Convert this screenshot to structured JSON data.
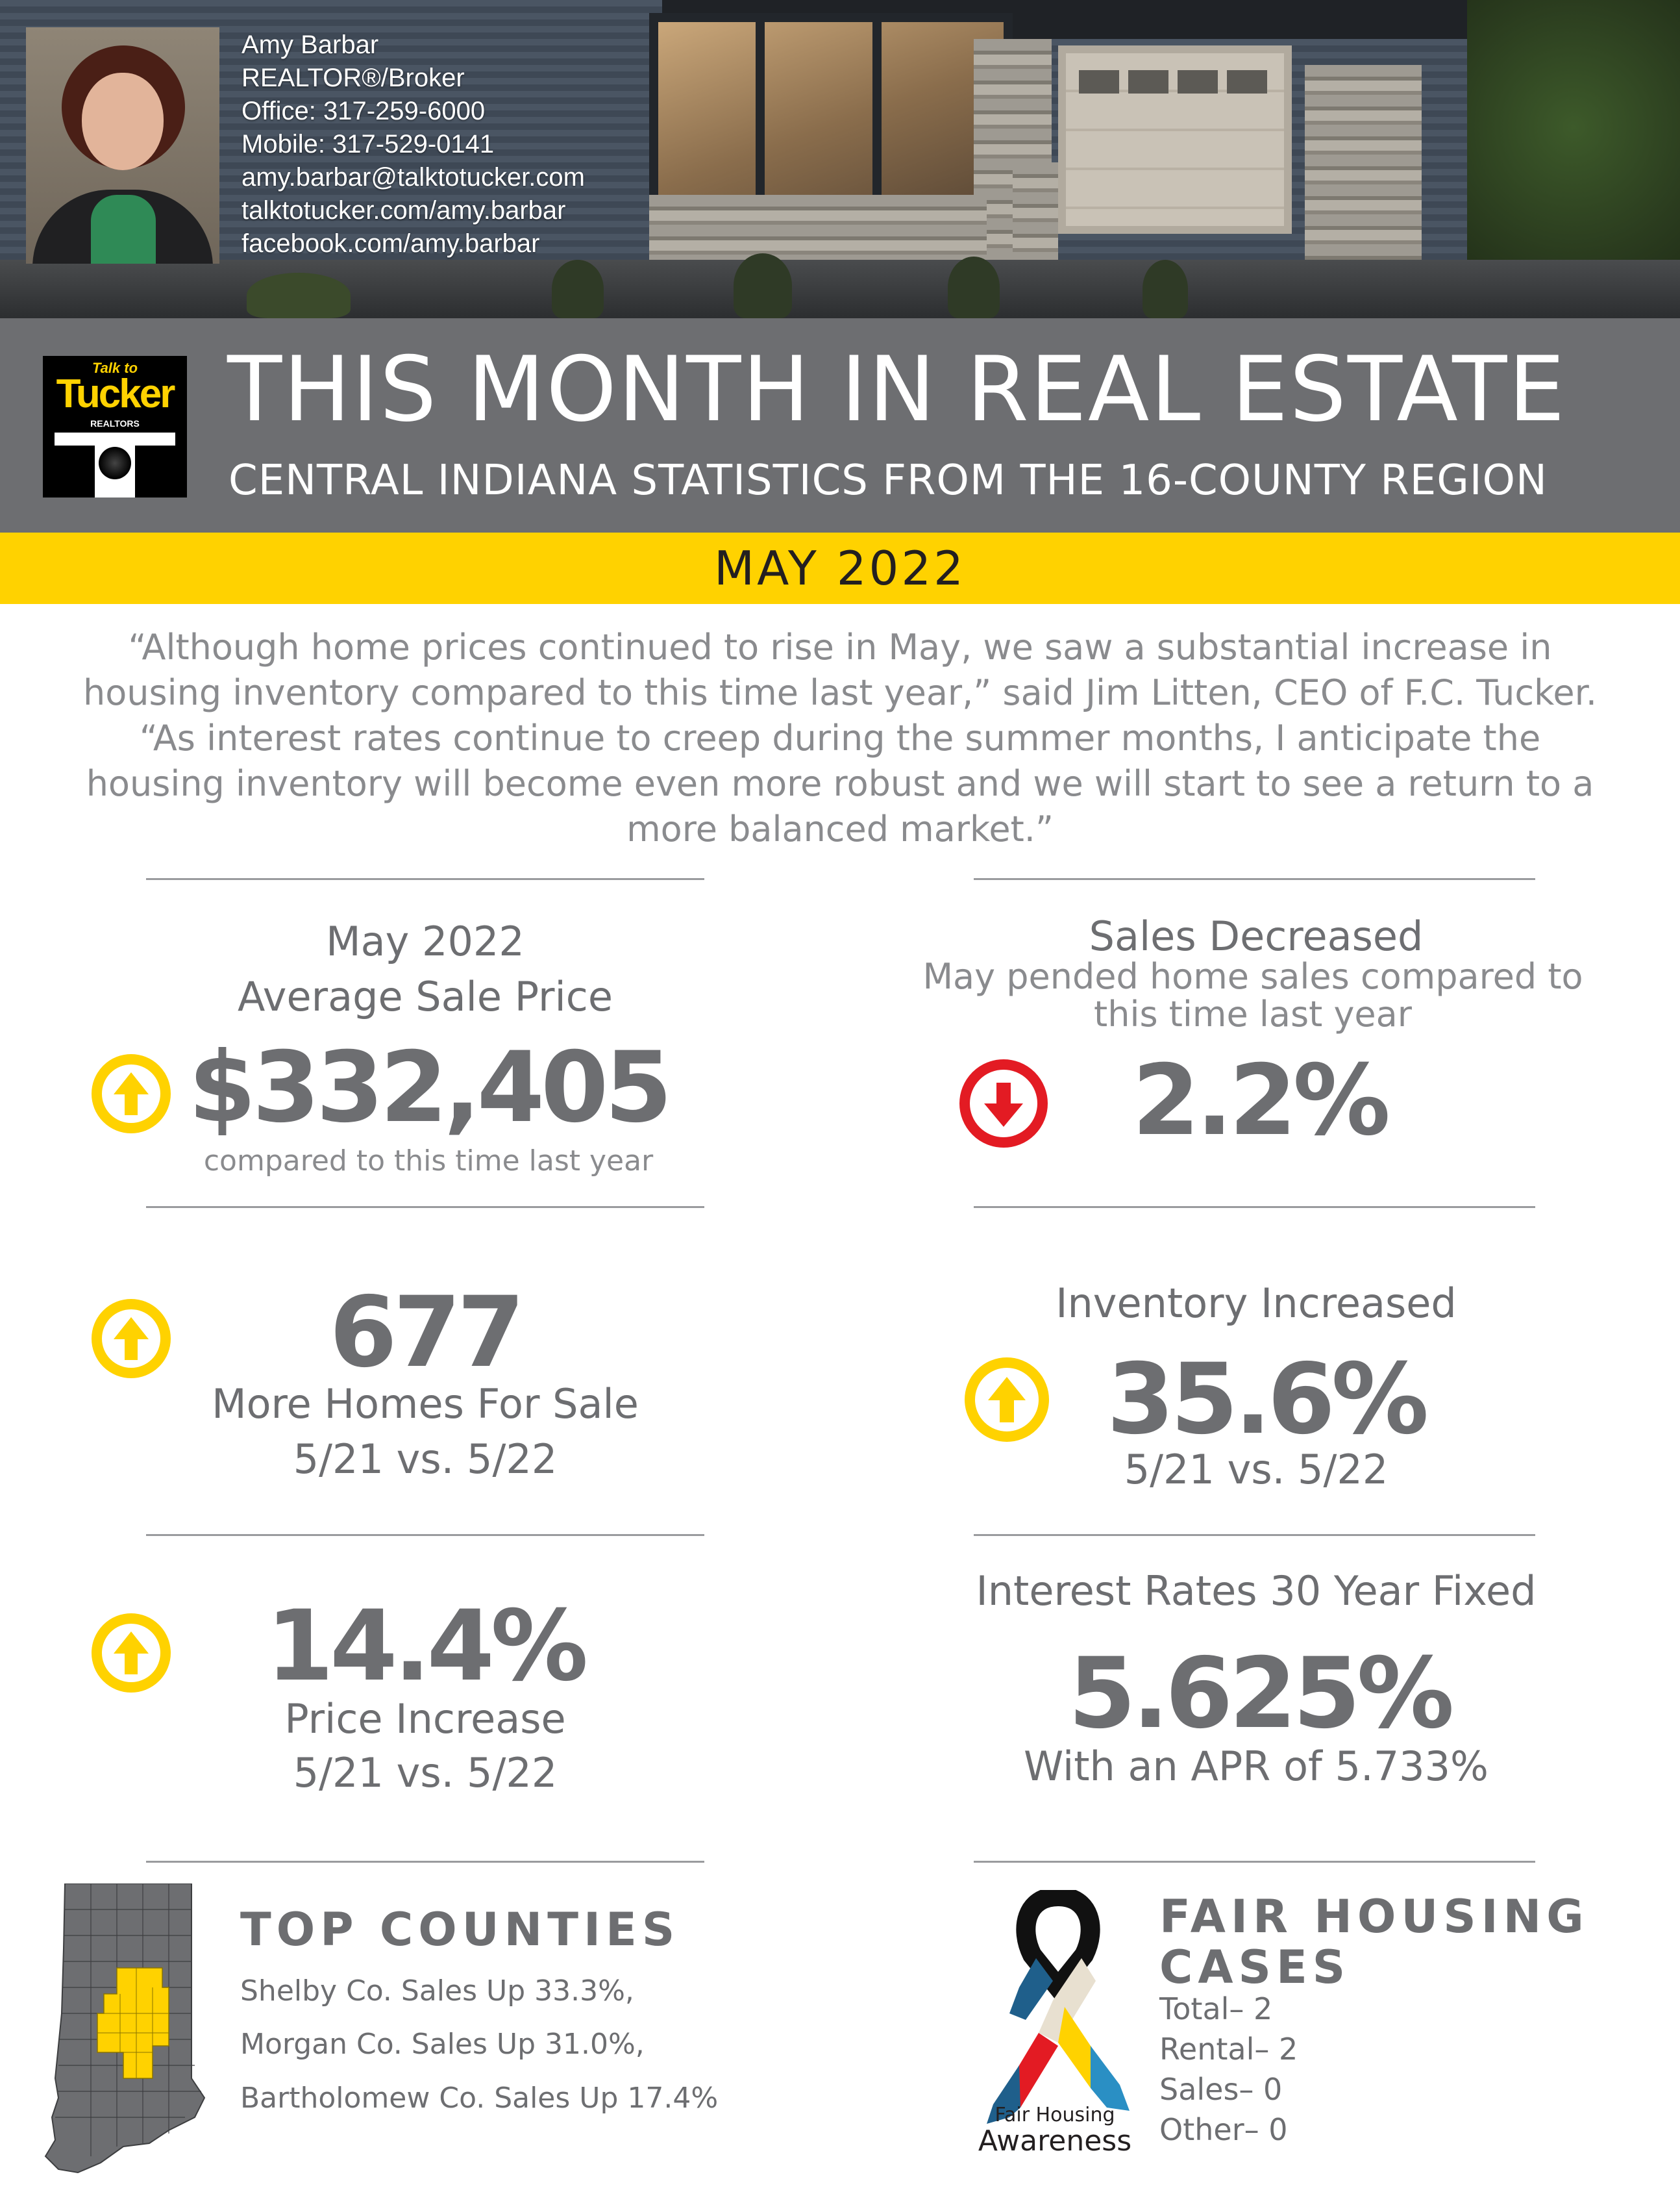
{
  "agent": {
    "name": "Amy Barbar",
    "title": "REALTOR®/Broker",
    "office": "Office: 317-259-6000",
    "mobile": "Mobile: 317-529-0141",
    "email": "amy.barbar@talktotucker.com",
    "website": "talktotucker.com/amy.barbar",
    "facebook": "facebook.com/amy.barbar"
  },
  "logo": {
    "top": "Talk to",
    "main": "Tucker",
    "bottom": "REALTORS"
  },
  "header": {
    "title": "THIS MONTH IN REAL ESTATE",
    "subtitle": "CENTRAL INDIANA STATISTICS FROM THE 16-COUNTY REGION",
    "month": "MAY 2022"
  },
  "quote": "“Although home prices continued to rise in May, we saw a substantial increase in housing inventory compared to this time last year,” said Jim Litten, CEO of F.C. Tucker. “As interest rates continue to creep during the summer months, I anticipate the housing inventory will become even more robust and we will start to see a return to a more balanced market.”",
  "stats": {
    "avg_price": {
      "label1": "May 2022",
      "label2": "Average Sale Price",
      "value": "$332,405",
      "note": "compared to this time last year",
      "direction": "up"
    },
    "sales": {
      "label": "Sales Decreased",
      "sub1": "May pended home sales compared to",
      "sub2": "this time last year",
      "value": "2.2%",
      "direction": "down"
    },
    "homes": {
      "value": "677",
      "label": "More Homes For Sale",
      "compare": "5/21 vs. 5/22",
      "direction": "up"
    },
    "inventory": {
      "label": "Inventory Increased",
      "value": "35.6%",
      "compare": "5/21 vs. 5/22",
      "direction": "up"
    },
    "price_increase": {
      "value": "14.4%",
      "label": "Price Increase",
      "compare": "5/21 vs. 5/22",
      "direction": "up"
    },
    "rates": {
      "label": "Interest Rates 30 Year Fixed",
      "value": "5.625%",
      "apr": "With an APR of 5.733%"
    }
  },
  "counties": {
    "title": "TOP COUNTIES",
    "items": [
      "Shelby Co. Sales Up 33.3%,",
      "Morgan Co. Sales Up 31.0%,",
      "Bartholomew Co. Sales Up 17.4%"
    ]
  },
  "fair_housing": {
    "title1": "FAIR HOUSING",
    "title2": "CASES",
    "items": [
      "Total– 2",
      "Rental– 2",
      "Sales– 0",
      "Other– 0"
    ],
    "ribbon_line1": "Fair Housing",
    "ribbon_line2": "Awareness"
  },
  "colors": {
    "accent_yellow": "#ffd200",
    "banner_gray": "#6d6e71",
    "down_red": "#e31b23",
    "text_gray": "#6d6e71"
  }
}
